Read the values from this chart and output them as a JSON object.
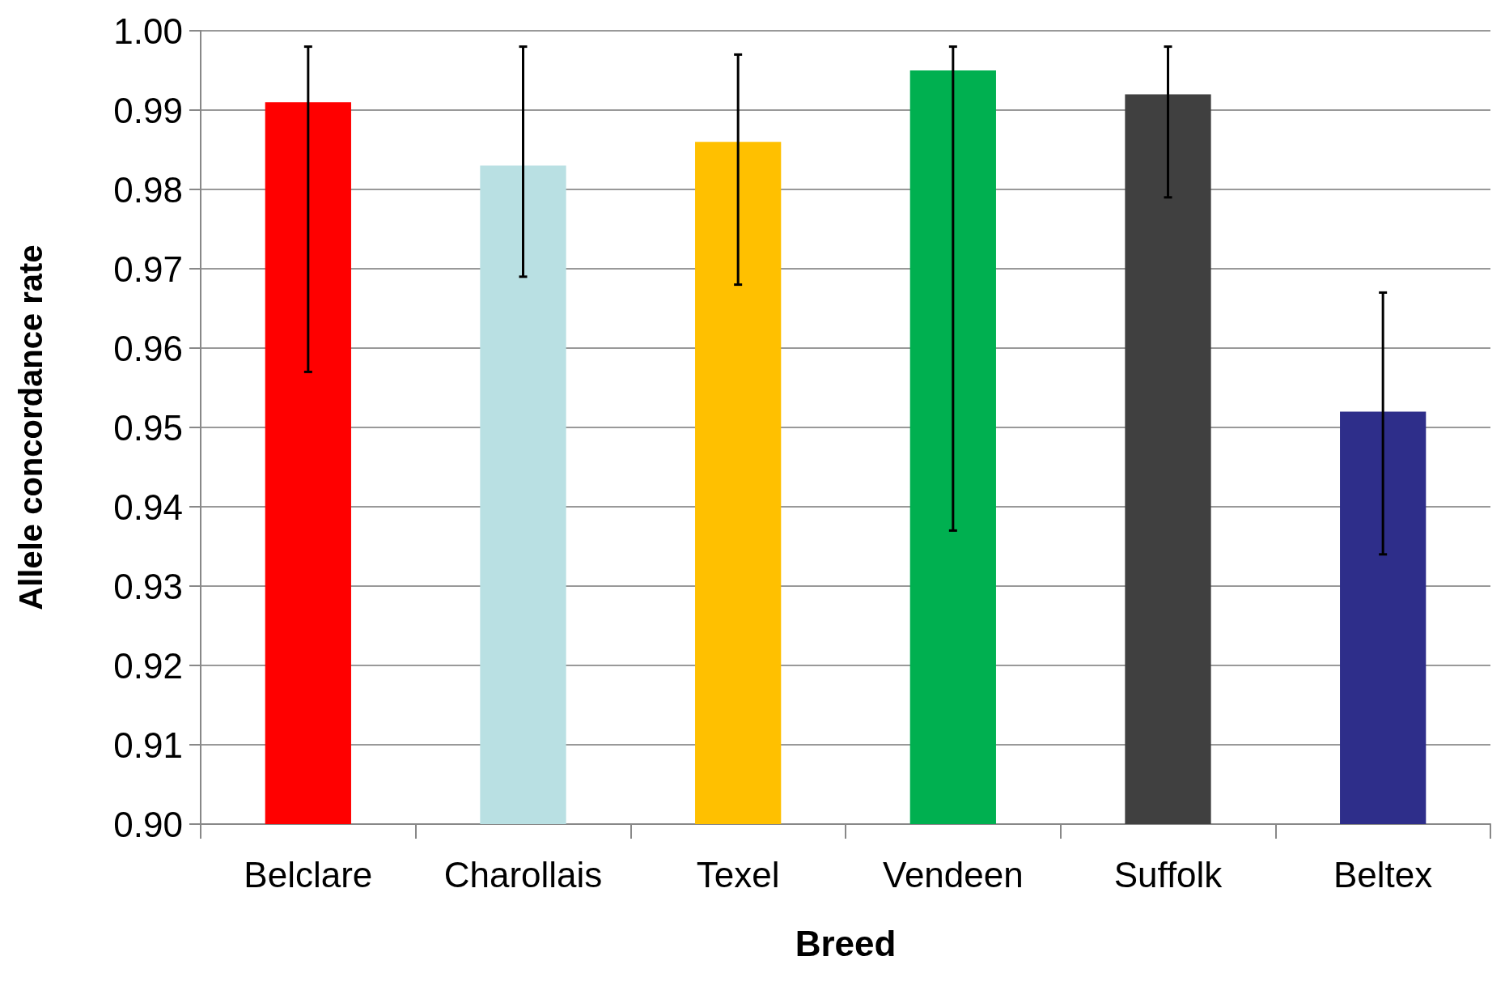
{
  "chart_data": {
    "type": "bar",
    "xlabel": "Breed",
    "ylabel": "Allele concordance rate",
    "categories": [
      "Belclare",
      "Charollais",
      "Texel",
      "Vendeen",
      "Suffolk",
      "Beltex"
    ],
    "values": [
      0.991,
      0.983,
      0.986,
      0.995,
      0.992,
      0.952
    ],
    "colors": [
      "#ff0000",
      "#b9e0e3",
      "#ffc000",
      "#00b050",
      "#404040",
      "#2e2e8a"
    ],
    "errors": [
      [
        0.957,
        0.998
      ],
      [
        0.969,
        0.998
      ],
      [
        0.968,
        0.997
      ],
      [
        0.937,
        0.998
      ],
      [
        0.979,
        0.998
      ],
      [
        0.934,
        0.967
      ]
    ],
    "ylim": [
      0.9,
      1.0
    ],
    "yticks": [
      {
        "value": 0.9,
        "label": "0.90"
      },
      {
        "value": 0.91,
        "label": "0.91"
      },
      {
        "value": 0.92,
        "label": "0.92"
      },
      {
        "value": 0.93,
        "label": "0.93"
      },
      {
        "value": 0.94,
        "label": "0.94"
      },
      {
        "value": 0.95,
        "label": "0.95"
      },
      {
        "value": 0.96,
        "label": "0.96"
      },
      {
        "value": 0.97,
        "label": "0.97"
      },
      {
        "value": 0.98,
        "label": "0.98"
      },
      {
        "value": 0.99,
        "label": "0.99"
      },
      {
        "value": 1.0,
        "label": "1.00"
      }
    ],
    "grid": "y"
  }
}
